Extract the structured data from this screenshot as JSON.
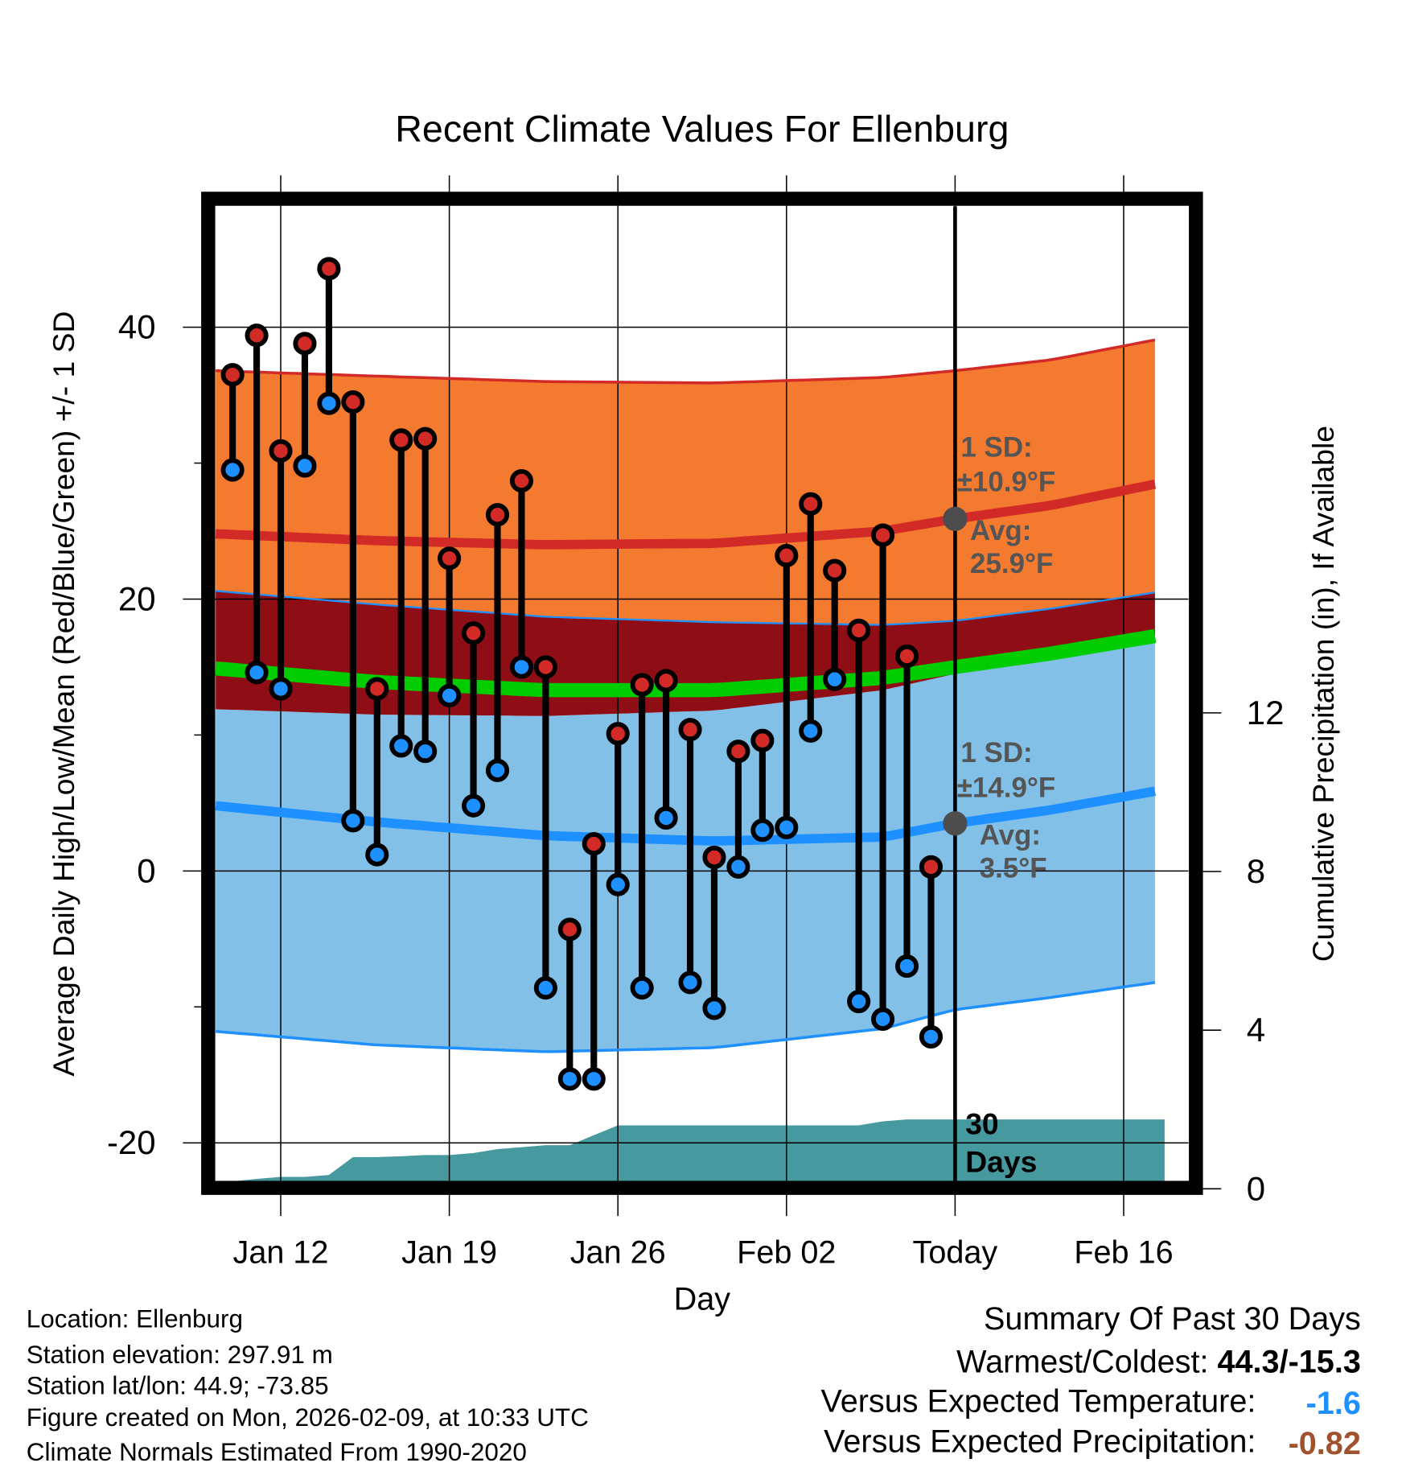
{
  "chart_data": {
    "type": "line",
    "title": "Recent Climate Values For Ellenburg",
    "xlabel": "Day",
    "ylabel": "Average Daily High/Low/Mean (Red/Blue/Green) +/- 1 SD",
    "y2label": "Cumulative Precipitation (in), If Available",
    "x_unit": "days relative to Today (Feb 09)",
    "xlim": [
      -30.7,
      8.7
    ],
    "ylim": [
      -22.8,
      48.9
    ],
    "y2lim": [
      0,
      24.6
    ],
    "grid": true,
    "x_ticks": [
      {
        "x": -28,
        "label": "Jan 12"
      },
      {
        "x": -21,
        "label": "Jan 19"
      },
      {
        "x": -14,
        "label": "Jan 26"
      },
      {
        "x": -7,
        "label": "Feb 02"
      },
      {
        "x": 0,
        "label": "Today"
      },
      {
        "x": 7,
        "label": "Feb 16"
      }
    ],
    "y_ticks": [
      {
        "y": 40,
        "label": "40"
      },
      {
        "y": 20,
        "label": "20"
      },
      {
        "y": 0,
        "label": "0"
      },
      {
        "y": -20,
        "label": "-20"
      }
    ],
    "y_minor_ticks": [
      30,
      10,
      -10
    ],
    "y2_ticks": [
      {
        "y": 12,
        "label": "12"
      },
      {
        "y": 8,
        "label": "8"
      },
      {
        "y": 4,
        "label": "4"
      },
      {
        "y": 0,
        "label": "0"
      }
    ],
    "daily": {
      "x": [
        -30,
        -29,
        -28,
        -27,
        -26,
        -25,
        -24,
        -23,
        -22,
        -21,
        -20,
        -19,
        -18,
        -17,
        -16,
        -15,
        -14,
        -13,
        -12,
        -11,
        -10,
        -9,
        -8,
        -7,
        -6,
        -5,
        -4,
        -3,
        -2,
        -1
      ],
      "high": [
        36.5,
        39.4,
        30.9,
        38.8,
        44.3,
        34.5,
        13.4,
        31.7,
        31.8,
        23.0,
        17.5,
        26.2,
        28.7,
        15.0,
        -4.3,
        2.0,
        10.1,
        13.7,
        14.0,
        10.4,
        1.0,
        8.8,
        9.6,
        23.2,
        27.0,
        22.1,
        17.7,
        24.7,
        15.8,
        0.3
      ],
      "low": [
        29.5,
        14.6,
        13.4,
        29.8,
        34.4,
        3.7,
        1.2,
        9.2,
        8.8,
        12.9,
        4.8,
        7.4,
        15.0,
        -8.6,
        -15.3,
        -15.3,
        -1.0,
        -8.6,
        3.9,
        -8.2,
        -10.1,
        0.3,
        3.0,
        3.2,
        10.3,
        14.1,
        -9.6,
        -10.9,
        -7.0,
        -12.2
      ]
    },
    "normals": {
      "x": [
        -30.7,
        -24,
        -17,
        -10,
        -3,
        0,
        4,
        8.7
      ],
      "high_upper": [
        36.8,
        36.4,
        36.0,
        35.9,
        36.3,
        36.8,
        37.6,
        39.2
      ],
      "high_avg": [
        24.8,
        24.3,
        24.0,
        24.1,
        25.0,
        25.9,
        26.9,
        28.6
      ],
      "high_lower": [
        20.6,
        19.6,
        18.7,
        18.3,
        18.1,
        18.4,
        19.3,
        20.6
      ],
      "mean": [
        14.9,
        13.9,
        13.3,
        13.3,
        14.2,
        15.0,
        16.0,
        17.4
      ],
      "low_upper": [
        11.9,
        11.5,
        11.4,
        11.8,
        13.3,
        14.5,
        15.5,
        16.9
      ],
      "low_avg": [
        4.8,
        3.6,
        2.6,
        2.2,
        2.5,
        3.5,
        4.5,
        6.0
      ],
      "low_lower": [
        -11.8,
        -12.8,
        -13.3,
        -13.0,
        -11.6,
        -10.2,
        -9.3,
        -8.1
      ]
    },
    "precip_cumulative": {
      "x": [
        -30.7,
        -30,
        -29,
        -28,
        -27,
        -26,
        -25,
        -24,
        -23,
        -22,
        -21,
        -20,
        -19,
        -18,
        -17,
        -16,
        -15,
        -14,
        -4,
        -3,
        -2,
        8.7
      ],
      "y": [
        0,
        0.1,
        0.25,
        0.3,
        0.3,
        0.35,
        0.8,
        0.8,
        0.82,
        0.85,
        0.85,
        0.9,
        1.0,
        1.05,
        1.1,
        1.1,
        1.35,
        1.6,
        1.6,
        1.7,
        1.75,
        1.75
      ]
    },
    "annotations": {
      "high_sd_label": "1 SD:",
      "high_sd_value": "±10.9°F",
      "high_avg_label": "Avg:",
      "high_avg_value": "25.9°F",
      "low_sd_label": "1 SD:",
      "low_sd_value": "±14.9°F",
      "low_avg_label": "Avg:",
      "low_avg_value": "3.5°F",
      "high_avg_today": 25.9,
      "low_avg_today": 3.5,
      "window_line1": "30",
      "window_line2": "Days"
    },
    "colors": {
      "high_band": "#f47a30",
      "high_line": "#d22a27",
      "overlap_band": "#8f0d15",
      "mean_line": "#00cc00",
      "low_band": "#82c0e8",
      "low_line": "#1e90ff",
      "precip": "#4799a0",
      "high_point": "#d22a27",
      "low_point": "#1e90ff",
      "annotation": "#555555"
    }
  },
  "info": {
    "location": "Location: Ellenburg",
    "elevation": "Station elevation: 297.91 m",
    "latlon": "Station lat/lon: 44.9; -73.85",
    "created": "Figure created on Mon, 2026-02-09, at 10:33 UTC",
    "normals": "Climate Normals Estimated From 1990-2020"
  },
  "summary": {
    "title": "Summary Of Past 30 Days",
    "warm_cold_label": "Warmest/Coldest: ",
    "warm_cold_value": "44.3/-15.3",
    "temp_label": "Versus Expected Temperature:",
    "temp_value": "-1.6",
    "temp_color": "#1e90ff",
    "precip_label": "Versus Expected Precipitation:",
    "precip_value": "-0.82",
    "precip_color": "#a0522d"
  }
}
